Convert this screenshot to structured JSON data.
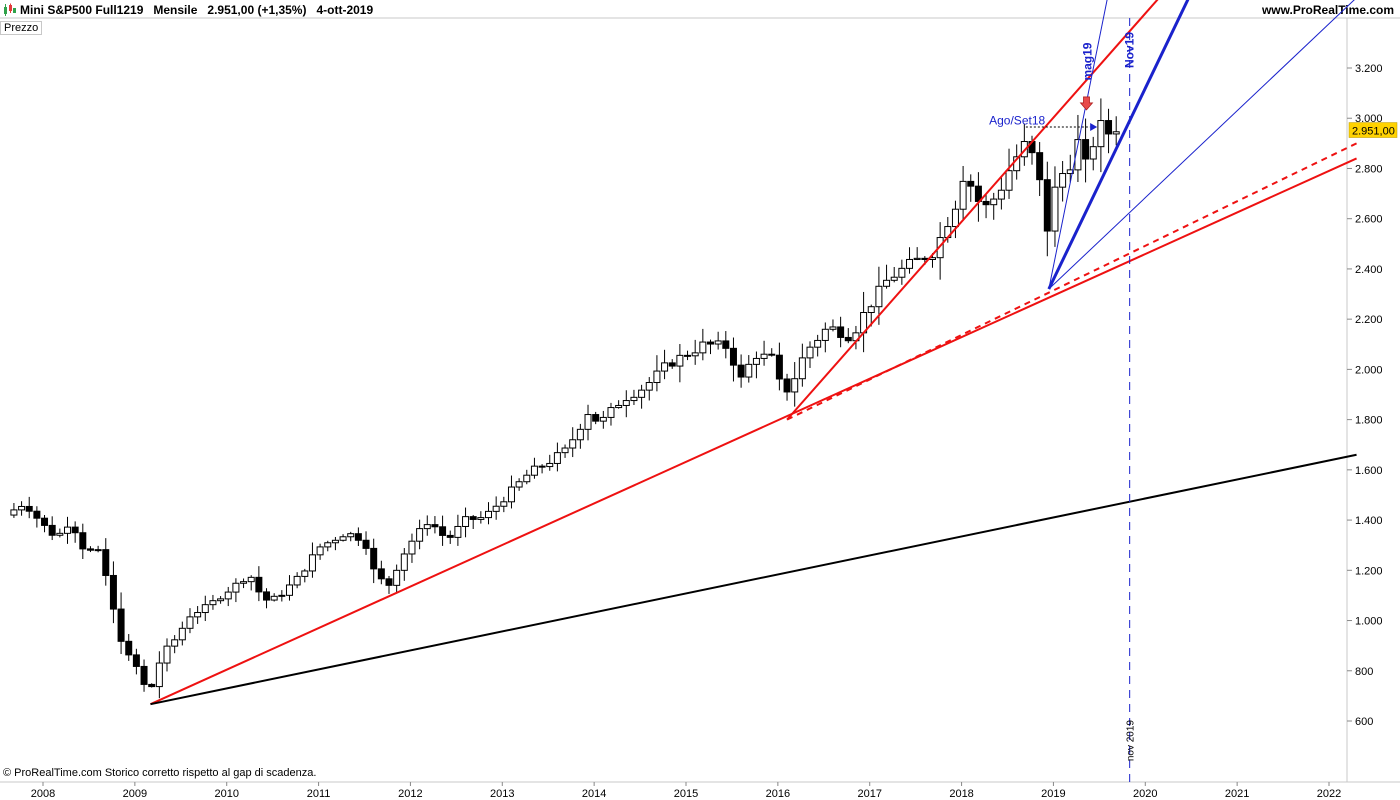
{
  "header": {
    "title": "Mini S&P500 Full1219   Mensile   2.951,00 (+1,35%)   4-ott-2019",
    "site": "www.ProRealTime.com"
  },
  "panel_label": "Prezzo",
  "footer_note": "© ProRealTime.com  Storico corretto rispetto al gap di scadenza.",
  "price_badge": "2.951,00",
  "colors": {
    "trend_red": "#ee1111",
    "trend_blue": "#1a22cc",
    "trend_black": "#000000",
    "badge": "#ffd200",
    "bull_candle": "#ffffff",
    "bear_candle": "#000000",
    "marker_arrow": "#e84a4a"
  },
  "icons": {
    "app": "candlestick-chart-icon",
    "marker": "down-arrow-icon"
  },
  "chart_data": {
    "type": "candlestick",
    "timeframe": "Mensile",
    "xlim": [
      2008.0,
      2022.3
    ],
    "ylim": [
      400,
      3480
    ],
    "y_ticks": [
      600,
      800,
      1000,
      1200,
      1400,
      1600,
      1800,
      2000,
      2200,
      2400,
      2600,
      2800,
      3000,
      3200
    ],
    "y_tick_labels": [
      "600",
      "800",
      "1.000",
      "1.200",
      "1.400",
      "1.600",
      "1.800",
      "2.000",
      "2.200",
      "2.400",
      "2.600",
      "2.800",
      "3.000",
      "3.200"
    ],
    "x_ticks": [
      2008,
      2009,
      2010,
      2011,
      2012,
      2013,
      2014,
      2015,
      2016,
      2017,
      2018,
      2019,
      2020,
      2021,
      2022
    ],
    "x_tick_labels": [
      "2008",
      "2009",
      "2010",
      "2011",
      "2012",
      "2013",
      "2014",
      "2015",
      "2016",
      "2017",
      "2018",
      "2019",
      "2020",
      "2021",
      "2022"
    ],
    "monthly_close_anchors": [
      [
        2007.6,
        1420
      ],
      [
        2007.8,
        1470
      ],
      [
        2008.0,
        1380
      ],
      [
        2008.15,
        1330
      ],
      [
        2008.3,
        1400
      ],
      [
        2008.45,
        1280
      ],
      [
        2008.6,
        1270
      ],
      [
        2008.7,
        1160
      ],
      [
        2008.8,
        980
      ],
      [
        2008.9,
        870
      ],
      [
        2009.0,
        830
      ],
      [
        2009.15,
        700
      ],
      [
        2009.3,
        870
      ],
      [
        2009.45,
        930
      ],
      [
        2009.6,
        1020
      ],
      [
        2009.8,
        1060
      ],
      [
        2010.0,
        1115
      ],
      [
        2010.25,
        1185
      ],
      [
        2010.4,
        1080
      ],
      [
        2010.55,
        1090
      ],
      [
        2010.8,
        1180
      ],
      [
        2011.0,
        1290
      ],
      [
        2011.3,
        1350
      ],
      [
        2011.5,
        1320
      ],
      [
        2011.6,
        1200
      ],
      [
        2011.75,
        1130
      ],
      [
        2011.9,
        1250
      ],
      [
        2012.0,
        1310
      ],
      [
        2012.2,
        1400
      ],
      [
        2012.4,
        1320
      ],
      [
        2012.6,
        1400
      ],
      [
        2012.8,
        1410
      ],
      [
        2013.0,
        1480
      ],
      [
        2013.3,
        1590
      ],
      [
        2013.5,
        1630
      ],
      [
        2013.7,
        1680
      ],
      [
        2013.95,
        1840
      ],
      [
        2014.05,
        1780
      ],
      [
        2014.3,
        1880
      ],
      [
        2014.55,
        1930
      ],
      [
        2014.8,
        2020
      ],
      [
        2014.95,
        2050
      ],
      [
        2015.2,
        2100
      ],
      [
        2015.45,
        2090
      ],
      [
        2015.6,
        1960
      ],
      [
        2015.75,
        2060
      ],
      [
        2015.95,
        2040
      ],
      [
        2016.05,
        1900
      ],
      [
        2016.15,
        1940
      ],
      [
        2016.3,
        2070
      ],
      [
        2016.55,
        2170
      ],
      [
        2016.8,
        2130
      ],
      [
        2016.95,
        2230
      ],
      [
        2017.2,
        2360
      ],
      [
        2017.45,
        2420
      ],
      [
        2017.7,
        2470
      ],
      [
        2017.95,
        2670
      ],
      [
        2018.05,
        2820
      ],
      [
        2018.12,
        2700
      ],
      [
        2018.25,
        2640
      ],
      [
        2018.4,
        2700
      ],
      [
        2018.55,
        2820
      ],
      [
        2018.7,
        2900
      ],
      [
        2018.75,
        2920
      ],
      [
        2018.8,
        2710
      ],
      [
        2018.88,
        2760
      ],
      [
        2018.95,
        2500
      ],
      [
        2019.0,
        2700
      ],
      [
        2019.1,
        2780
      ],
      [
        2019.2,
        2830
      ],
      [
        2019.3,
        2940
      ],
      [
        2019.37,
        2760
      ],
      [
        2019.45,
        2940
      ],
      [
        2019.55,
        2980
      ],
      [
        2019.63,
        2920
      ],
      [
        2019.7,
        2980
      ],
      [
        2019.76,
        2951
      ]
    ],
    "trendlines": [
      {
        "name": "",
        "color": "red",
        "style": "solid",
        "width": 2,
        "from": [
          2009.17,
          667
        ],
        "to": [
          2022.3,
          2840
        ]
      },
      {
        "name": "",
        "color": "red",
        "style": "solid",
        "width": 2,
        "from": [
          2016.1,
          1800
        ],
        "to": [
          2020.2,
          3500
        ]
      },
      {
        "name": "",
        "color": "red",
        "style": "dashed",
        "width": 2,
        "from": [
          2016.1,
          1800
        ],
        "to": [
          2022.3,
          2900
        ]
      },
      {
        "name": "",
        "color": "black",
        "style": "solid",
        "width": 2,
        "from": [
          2009.17,
          667
        ],
        "to": [
          2022.3,
          1660
        ]
      },
      {
        "name": "",
        "color": "blue",
        "style": "solid",
        "width": 3,
        "from": [
          2018.95,
          2320
        ],
        "to": [
          2020.5,
          3500
        ]
      },
      {
        "name": "",
        "color": "blue",
        "style": "solid",
        "width": 1,
        "from": [
          2018.95,
          2320
        ],
        "to": [
          2019.6,
          3500
        ]
      },
      {
        "name": "",
        "color": "blue",
        "style": "solid",
        "width": 1,
        "from": [
          2018.95,
          2320
        ],
        "to": [
          2022.3,
          3480
        ]
      }
    ],
    "annotations": [
      {
        "text": "Ago/Set18",
        "x": 2018.3,
        "y": 2975,
        "color": "blue"
      },
      {
        "text": "mag19",
        "x": 2019.37,
        "y": 3150,
        "color": "blue",
        "rotate": true
      },
      {
        "text": "Nov19",
        "x": 2019.83,
        "y": 3200,
        "color": "blue",
        "rotate": true
      },
      {
        "text": "nov 2019",
        "x": 2019.83,
        "y": 440,
        "color": "black",
        "rotate": true
      }
    ],
    "horizontal_marker": {
      "from": [
        2018.7,
        2965
      ],
      "to": [
        2019.4,
        2965
      ],
      "style": "dotted",
      "color": "black"
    },
    "vertical_marker": {
      "x": 2019.83,
      "label": "nov 2019",
      "style": "dashed",
      "color": "blue"
    },
    "last_price": 2951
  }
}
